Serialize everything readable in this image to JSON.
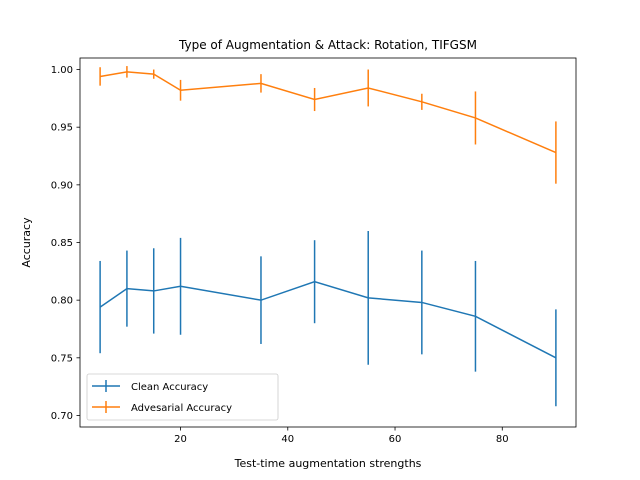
{
  "chart_data": {
    "type": "line",
    "title": "Type of Augmentation & Attack: Rotation, TIFGSM",
    "xlabel": "Test-time augmentation strengths",
    "ylabel": "Accuracy",
    "xlim": [
      1.25,
      93.75
    ],
    "ylim": [
      0.69,
      1.01
    ],
    "x_ticks": [
      20,
      40,
      60,
      80
    ],
    "y_ticks": [
      0.7,
      0.75,
      0.8,
      0.85,
      0.9,
      0.95,
      1.0
    ],
    "y_tick_labels": [
      "0.70",
      "0.75",
      "0.80",
      "0.85",
      "0.90",
      "0.95",
      "1.00"
    ],
    "x": [
      5,
      10,
      15,
      20,
      35,
      45,
      55,
      65,
      75,
      90
    ],
    "grid": false,
    "legend_position": "lower-left",
    "series": [
      {
        "name": "Clean Accuracy",
        "color": "#1f77b4",
        "values": [
          0.794,
          0.81,
          0.808,
          0.812,
          0.8,
          0.816,
          0.802,
          0.798,
          0.786,
          0.75
        ],
        "err": [
          0.04,
          0.033,
          0.037,
          0.042,
          0.038,
          0.036,
          0.058,
          0.045,
          0.048,
          0.042
        ]
      },
      {
        "name": "Advesarial Accuracy",
        "color": "#ff7f0e",
        "values": [
          0.994,
          0.998,
          0.996,
          0.982,
          0.988,
          0.974,
          0.984,
          0.972,
          0.958,
          0.928
        ],
        "err": [
          0.008,
          0.005,
          0.004,
          0.009,
          0.008,
          0.01,
          0.016,
          0.007,
          0.023,
          0.027
        ]
      }
    ]
  }
}
